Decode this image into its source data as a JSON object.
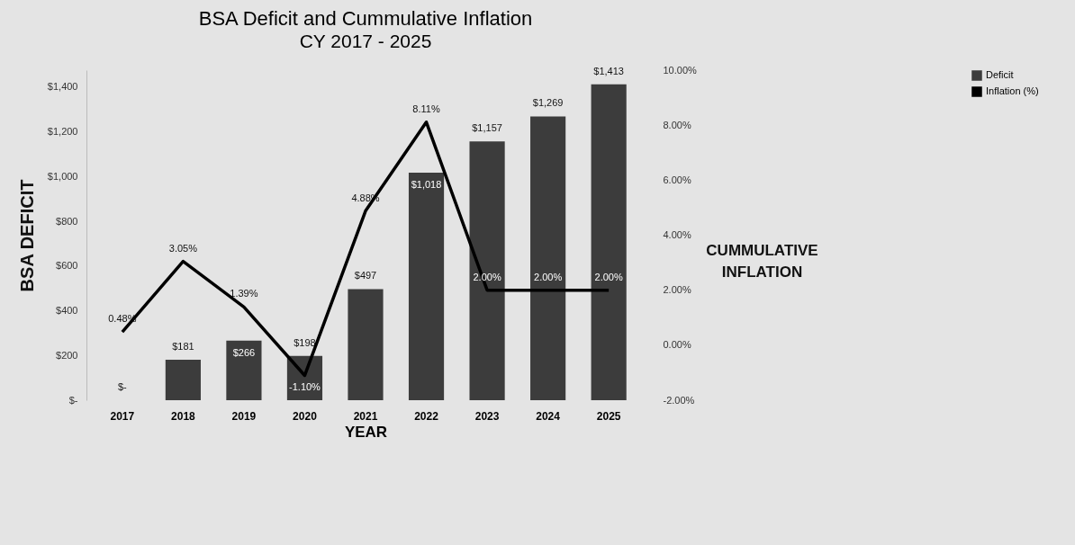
{
  "chart_data": {
    "type": "bar",
    "title": "BSA Deficit and Cummulative Inflation",
    "subtitle": "CY 2017 - 2025",
    "xlabel": "YEAR",
    "ylabel": "BSA DEFICIT",
    "y2label": "CUMMULATIVE INFLATION",
    "categories": [
      "2017",
      "2018",
      "2019",
      "2020",
      "2021",
      "2022",
      "2023",
      "2024",
      "2025"
    ],
    "series": [
      {
        "name": "Deficit",
        "type": "bar",
        "color": "#3c3c3c",
        "values": [
          0,
          181,
          266,
          198,
          497,
          1018,
          1157,
          1269,
          1413
        ],
        "value_labels": [
          "$-",
          "$181",
          "$266",
          "$198",
          "$497",
          "$1,018",
          "$1,157",
          "$1,269",
          "$1,413"
        ]
      },
      {
        "name": "Inflation (%)",
        "type": "line",
        "axis": "y2",
        "color": "#000000",
        "values": [
          0.48,
          3.05,
          1.39,
          -1.1,
          4.88,
          8.11,
          2.0,
          2.0,
          2.0
        ],
        "value_labels": [
          "0.48%",
          "3.05%",
          "1.39%",
          "-1.10%",
          "4.88%",
          "8.11%",
          "2.00%",
          "2.00%",
          "2.00%"
        ]
      }
    ],
    "ylim": [
      0,
      1476
    ],
    "yticks": [
      {
        "value": 0,
        "label": "$-"
      },
      {
        "value": 200,
        "label": "$200"
      },
      {
        "value": 400,
        "label": "$400"
      },
      {
        "value": 600,
        "label": "$600"
      },
      {
        "value": 800,
        "label": "$800"
      },
      {
        "value": 1000,
        "label": "$1,000"
      },
      {
        "value": 1200,
        "label": "$1,200"
      },
      {
        "value": 1400,
        "label": "$1,400"
      }
    ],
    "y2lim": [
      -2,
      10
    ],
    "y2ticks": [
      {
        "value": -2,
        "label": "-2.00%"
      },
      {
        "value": 0,
        "label": "0.00%"
      },
      {
        "value": 2,
        "label": "2.00%"
      },
      {
        "value": 4,
        "label": "4.00%"
      },
      {
        "value": 6,
        "label": "6.00%"
      },
      {
        "value": 8,
        "label": "8.00%"
      },
      {
        "value": 10,
        "label": "10.00%"
      }
    ],
    "legend": "right",
    "grid": false
  }
}
